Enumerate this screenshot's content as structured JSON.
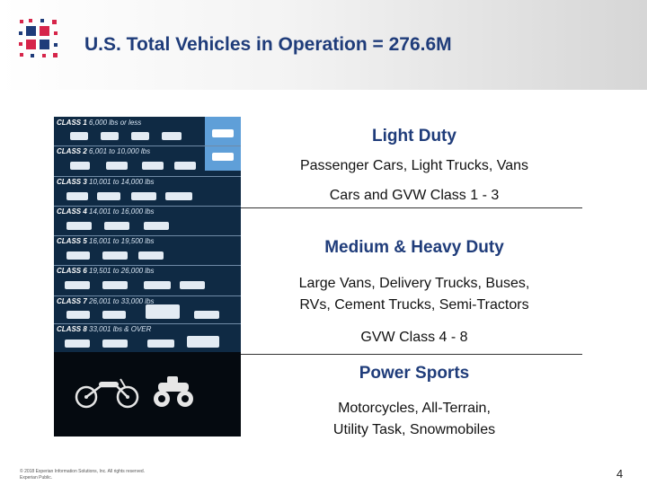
{
  "slide": {
    "title": "U.S. Total Vehicles in Operation = 276.6M",
    "page_number": "4",
    "footer_line1": "© 2018 Experian Information Solutions, Inc. All rights reserved.",
    "footer_line2": "Experian Public."
  },
  "vehicle_classes": [
    {
      "name": "CLASS 1",
      "weight": "6,000 lbs or less"
    },
    {
      "name": "CLASS 2",
      "weight": "6,001 to 10,000 lbs"
    },
    {
      "name": "CLASS 3",
      "weight": "10,001 to 14,000 lbs"
    },
    {
      "name": "CLASS 4",
      "weight": "14,001 to 16,000 lbs"
    },
    {
      "name": "CLASS 5",
      "weight": "16,001 to 19,500 lbs"
    },
    {
      "name": "CLASS 6",
      "weight": "19,501 to 26,000 lbs"
    },
    {
      "name": "CLASS 7",
      "weight": "26,001 to 33,000 lbs"
    },
    {
      "name": "CLASS 8",
      "weight": "33,001 lbs & OVER"
    }
  ],
  "sections": {
    "light": {
      "heading": "Light Duty",
      "desc": "Passenger Cars, Light Trucks, Vans",
      "range": "Cars and GVW Class 1 - 3"
    },
    "medium": {
      "heading": "Medium & Heavy Duty",
      "desc_line1": "Large Vans, Delivery Trucks, Buses,",
      "desc_line2": "RVs, Cement Trucks, Semi-Tractors",
      "range": "GVW Class 4 - 8"
    },
    "power": {
      "heading": "Power Sports",
      "desc_line1": "Motorcycles, All-Terrain,",
      "desc_line2": "Utility Task, Snowmobiles"
    }
  },
  "colors": {
    "title": "#1f3c7a",
    "panel": "#0f2a44",
    "highlight": "#5f9fd8",
    "logo_red": "#d6254a",
    "logo_blue": "#1f3c7a"
  }
}
